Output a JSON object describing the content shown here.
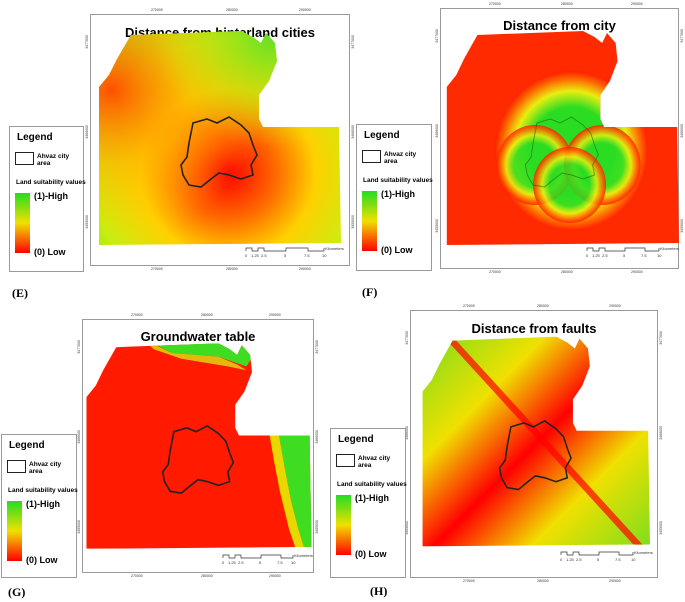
{
  "legend": {
    "title": "Legend",
    "city_label": "Ahvaz city area",
    "suitability_label": "Land suitability values",
    "high_label": "(1)-High",
    "low_label": "(0) Low"
  },
  "scale": {
    "numbers": [
      "0",
      "1.25",
      "2.5",
      "5",
      "7.5",
      "10"
    ],
    "unit": "Kilometers"
  },
  "ticks": {
    "x": [
      "270000",
      "280000",
      "290000"
    ],
    "y": [
      "3477000",
      "3466000",
      "3455000"
    ]
  },
  "panels": [
    {
      "label": "(E)",
      "title": "Distance from hinterland cities"
    },
    {
      "label": "(F)",
      "title": "Distance from city"
    },
    {
      "label": "(G)",
      "title": "Groundwater table"
    },
    {
      "label": "(H)",
      "title": "Distance from faults"
    }
  ],
  "colors": {
    "high": "#22dd22",
    "mid": "#f0e000",
    "low": "#ff0000"
  }
}
